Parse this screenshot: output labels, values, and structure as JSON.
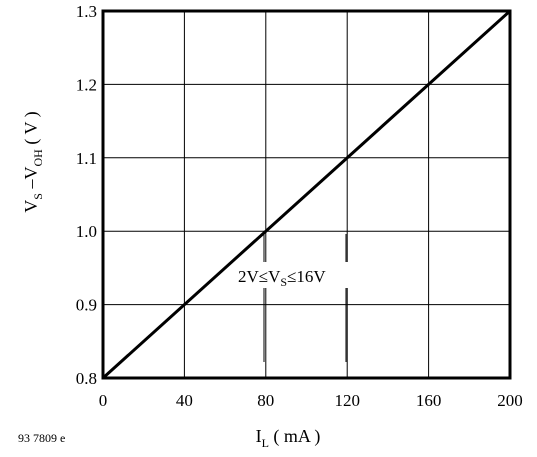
{
  "chart_data": {
    "type": "line",
    "x": [
      0,
      200
    ],
    "series": [
      {
        "values": [
          0.8,
          1.3
        ]
      }
    ],
    "xlim": [
      0,
      200
    ],
    "ylim": [
      0.8,
      1.3
    ],
    "xticks": [
      "0",
      "40",
      "80",
      "120",
      "160",
      "200"
    ],
    "yticks": [
      "0.8",
      "0.9",
      "1.0",
      "1.1",
      "1.2",
      "1.3"
    ],
    "xlabel": {
      "main": "I",
      "sub": "L",
      "rest": " ( mA )"
    },
    "ylabel": {
      "p1": "V",
      "s1": "S",
      "p2": " –V",
      "s2": "OH",
      "p3": " ( V )"
    },
    "annotation": {
      "p1": "2V≤V",
      "s1": "S",
      "p2": "≤16V"
    },
    "figure_code": "93 7809 e",
    "grid": true
  }
}
